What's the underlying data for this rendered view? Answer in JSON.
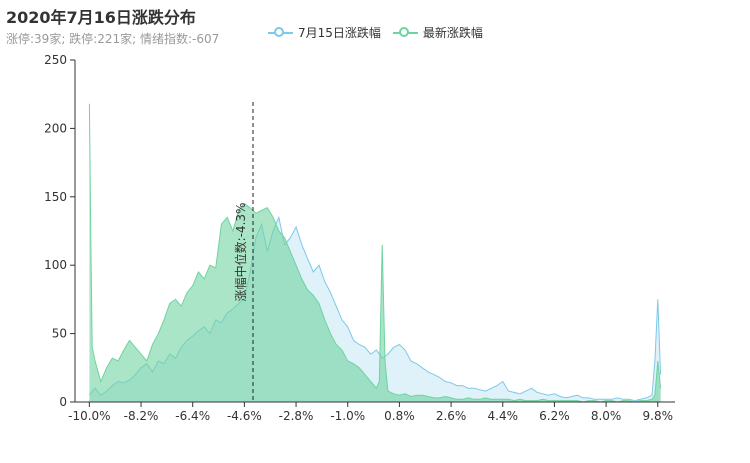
{
  "title": "2020年7月16日涨跌分布",
  "subtitle": "涨停:39家; 跌停:221家; 情绪指数:-607",
  "legend": [
    {
      "name": "7月15日涨跌幅",
      "color": "#7ec8e8"
    },
    {
      "name": "最新涨跌幅",
      "color": "#6fd3a0"
    }
  ],
  "chart_data": {
    "type": "area",
    "xlim": [
      -10.5,
      10.4
    ],
    "ylim": [
      0,
      250
    ],
    "y_ticks": [
      0,
      50,
      100,
      150,
      200,
      250
    ],
    "x_ticks": [
      "-10.0%",
      "-8.2%",
      "-6.4%",
      "-4.6%",
      "-2.8%",
      "-1.0%",
      "0.8%",
      "2.6%",
      "4.4%",
      "6.2%",
      "8.0%",
      "9.8%"
    ],
    "x_tick_values": [
      -10.0,
      -8.2,
      -6.4,
      -4.6,
      -2.8,
      -1.0,
      0.8,
      2.6,
      4.4,
      6.2,
      8.0,
      9.8
    ],
    "median": {
      "x": -4.3,
      "label": "涨幅中位数:-4.3%"
    },
    "series": [
      {
        "name": "7月15日涨跌幅",
        "color": "#7ec8e8",
        "fill": "rgba(126,200,232,0.25)",
        "x": [
          -10.0,
          -9.9,
          -9.8,
          -9.6,
          -9.4,
          -9.2,
          -9.0,
          -8.8,
          -8.6,
          -8.4,
          -8.2,
          -8.0,
          -7.8,
          -7.6,
          -7.4,
          -7.2,
          -7.0,
          -6.8,
          -6.6,
          -6.4,
          -6.2,
          -6.0,
          -5.8,
          -5.6,
          -5.4,
          -5.2,
          -5.0,
          -4.8,
          -4.6,
          -4.4,
          -4.2,
          -4.0,
          -3.8,
          -3.6,
          -3.4,
          -3.2,
          -3.0,
          -2.8,
          -2.6,
          -2.4,
          -2.2,
          -2.0,
          -1.8,
          -1.6,
          -1.4,
          -1.2,
          -1.0,
          -0.8,
          -0.6,
          -0.4,
          -0.2,
          0.0,
          0.2,
          0.4,
          0.6,
          0.8,
          1.0,
          1.2,
          1.4,
          1.6,
          1.8,
          2.0,
          2.2,
          2.4,
          2.6,
          2.8,
          3.0,
          3.2,
          3.4,
          3.6,
          3.8,
          4.0,
          4.2,
          4.4,
          4.6,
          4.8,
          5.0,
          5.2,
          5.4,
          5.6,
          5.8,
          6.0,
          6.2,
          6.4,
          6.6,
          6.8,
          7.0,
          7.2,
          7.4,
          7.6,
          7.8,
          8.0,
          8.2,
          8.4,
          8.6,
          8.8,
          9.0,
          9.2,
          9.4,
          9.6,
          9.7,
          9.8,
          9.9
        ],
        "y": [
          5,
          8,
          10,
          5,
          8,
          12,
          15,
          14,
          16,
          20,
          25,
          28,
          22,
          30,
          28,
          35,
          32,
          40,
          45,
          48,
          52,
          55,
          50,
          60,
          58,
          65,
          68,
          72,
          76,
          95,
          120,
          130,
          110,
          125,
          135,
          115,
          120,
          128,
          115,
          105,
          95,
          100,
          88,
          80,
          70,
          60,
          55,
          45,
          42,
          40,
          35,
          38,
          32,
          35,
          40,
          42,
          38,
          30,
          28,
          25,
          22,
          20,
          18,
          15,
          14,
          12,
          12,
          10,
          10,
          9,
          8,
          10,
          12,
          15,
          8,
          7,
          6,
          8,
          10,
          7,
          6,
          5,
          6,
          4,
          3,
          4,
          5,
          3,
          3,
          2,
          2,
          2,
          2,
          3,
          2,
          2,
          1,
          2,
          3,
          5,
          30,
          75,
          20
        ]
      },
      {
        "name": "最新涨跌幅",
        "color": "#6fd3a0",
        "fill": "rgba(111,211,160,0.6)",
        "x": [
          -10.0,
          -9.95,
          -9.9,
          -9.8,
          -9.6,
          -9.4,
          -9.2,
          -9.0,
          -8.8,
          -8.6,
          -8.4,
          -8.2,
          -8.0,
          -7.8,
          -7.6,
          -7.4,
          -7.2,
          -7.0,
          -6.8,
          -6.6,
          -6.4,
          -6.2,
          -6.0,
          -5.8,
          -5.6,
          -5.4,
          -5.2,
          -5.0,
          -4.8,
          -4.6,
          -4.4,
          -4.2,
          -4.0,
          -3.8,
          -3.6,
          -3.4,
          -3.2,
          -3.0,
          -2.8,
          -2.6,
          -2.4,
          -2.2,
          -2.0,
          -1.8,
          -1.6,
          -1.4,
          -1.2,
          -1.0,
          -0.8,
          -0.6,
          -0.4,
          -0.2,
          0.0,
          0.1,
          0.2,
          0.3,
          0.4,
          0.6,
          0.8,
          1.0,
          1.2,
          1.4,
          1.6,
          1.8,
          2.0,
          2.2,
          2.4,
          2.6,
          2.8,
          3.0,
          3.2,
          3.4,
          3.6,
          3.8,
          4.0,
          4.2,
          4.4,
          4.6,
          4.8,
          5.0,
          5.2,
          5.4,
          5.6,
          5.8,
          6.0,
          6.2,
          6.4,
          6.6,
          6.8,
          7.0,
          7.2,
          7.4,
          7.6,
          7.8,
          8.0,
          8.2,
          8.4,
          8.6,
          8.8,
          9.0,
          9.2,
          9.4,
          9.6,
          9.7,
          9.8,
          9.9
        ],
        "y": [
          218,
          120,
          40,
          30,
          15,
          25,
          32,
          30,
          38,
          45,
          40,
          35,
          30,
          42,
          50,
          60,
          72,
          75,
          70,
          80,
          85,
          95,
          90,
          100,
          98,
          130,
          135,
          125,
          140,
          145,
          142,
          138,
          140,
          142,
          135,
          125,
          120,
          110,
          100,
          90,
          82,
          78,
          72,
          60,
          50,
          42,
          38,
          30,
          28,
          25,
          20,
          15,
          10,
          15,
          115,
          30,
          8,
          6,
          5,
          6,
          4,
          5,
          5,
          4,
          3,
          3,
          4,
          3,
          2,
          2,
          3,
          2,
          2,
          3,
          2,
          2,
          2,
          2,
          1,
          2,
          1,
          1,
          1,
          2,
          1,
          1,
          1,
          1,
          1,
          1,
          0,
          1,
          1,
          0,
          1,
          1,
          0,
          1,
          1,
          0,
          1,
          1,
          2,
          5,
          30,
          10
        ]
      }
    ]
  }
}
